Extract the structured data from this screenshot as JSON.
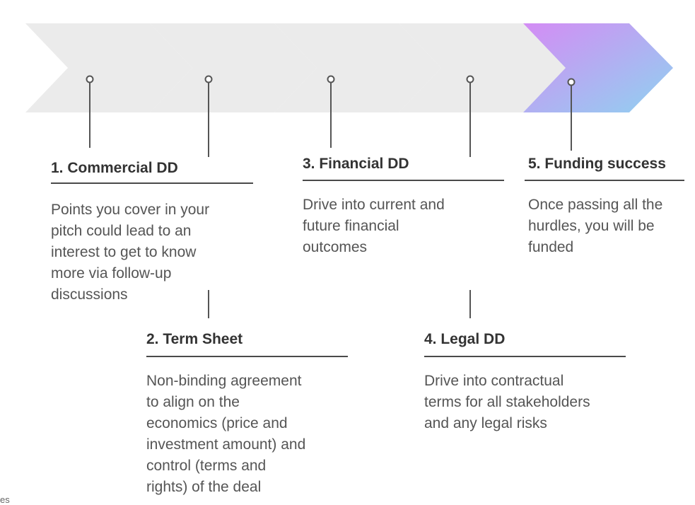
{
  "colors": {
    "chevron_gray": "#ebebeb",
    "final_gradient_start": "#d48cf4",
    "final_gradient_end": "#8fd2f0",
    "connector": "#555555",
    "rule": "#4a4a4a",
    "title_text": "#333333",
    "body_text": "#555555"
  },
  "steps": [
    {
      "title": "1. Commercial DD",
      "description_lines": [
        "Points you cover in your",
        "pitch could lead to an",
        "interest to get to know",
        "more via follow-up",
        "discussions"
      ]
    },
    {
      "title": "2. Term Sheet",
      "description_lines": [
        "Non-binding agreement",
        "to align on the",
        "economics (price and",
        "investment amount) and",
        "control (terms and",
        "rights) of the deal"
      ]
    },
    {
      "title": "3. Financial DD",
      "description_lines": [
        "Drive into current and",
        "future financial",
        "outcomes"
      ]
    },
    {
      "title": "4. Legal DD",
      "description_lines": [
        "Drive into contractual",
        "terms for all stakeholders",
        "and any legal risks"
      ]
    },
    {
      "title": "5. Funding success",
      "description_lines": [
        "Once passing all the",
        "hurdles, you will be",
        "funded"
      ]
    }
  ],
  "footer_fragment": "es"
}
